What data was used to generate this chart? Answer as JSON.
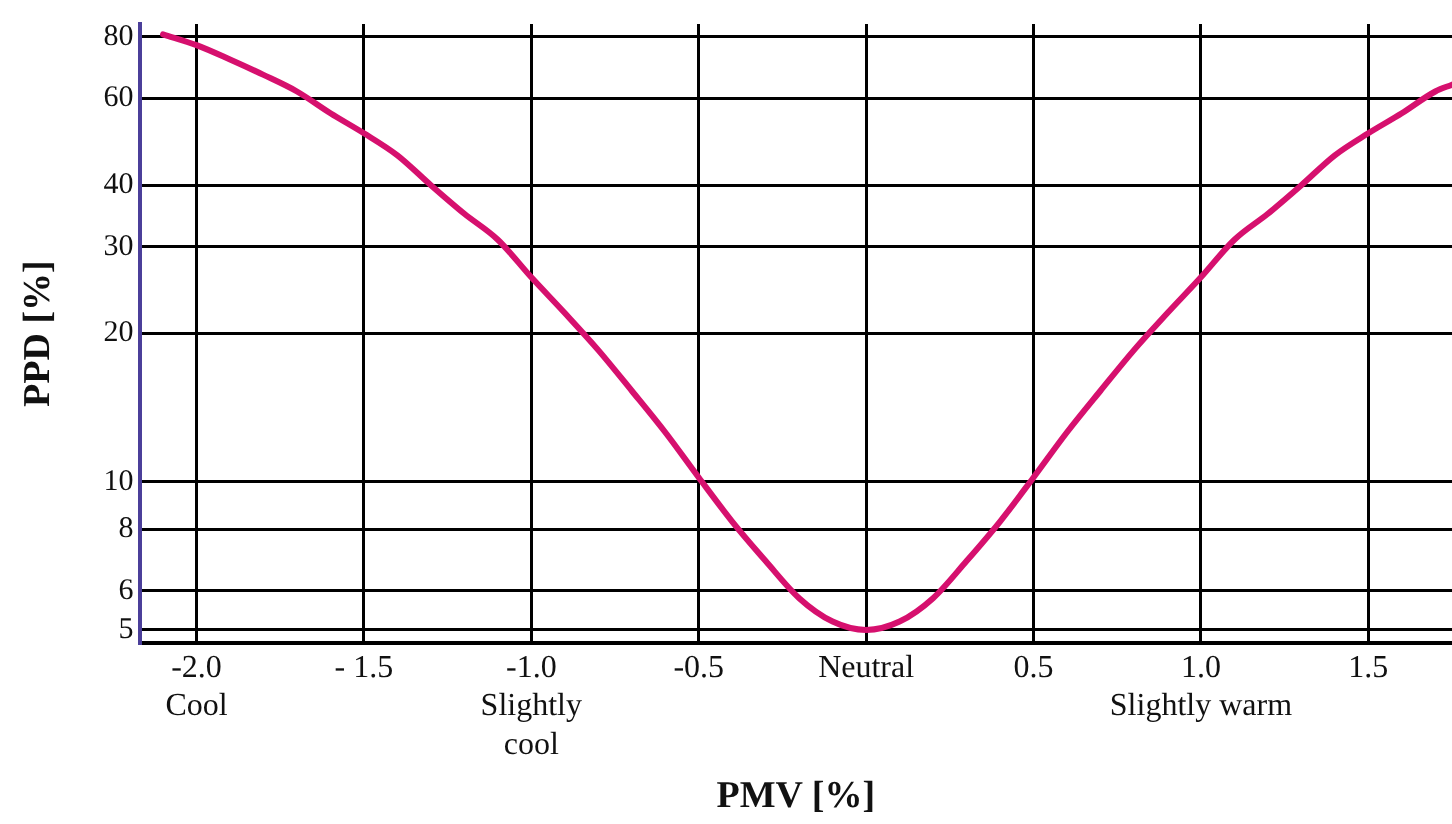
{
  "chart_data": {
    "type": "line",
    "xlabel": "PMV [%]",
    "ylabel": "PPD [%]",
    "x": [
      -2.1,
      -2.0,
      -1.9,
      -1.8,
      -1.7,
      -1.6,
      -1.5,
      -1.4,
      -1.3,
      -1.2,
      -1.1,
      -1.0,
      -0.9,
      -0.8,
      -0.7,
      -0.6,
      -0.5,
      -0.4,
      -0.3,
      -0.2,
      -0.1,
      0,
      0.1,
      0.2,
      0.3,
      0.4,
      0.5,
      0.6,
      0.7,
      0.8,
      0.9,
      1.0,
      1.1,
      1.2,
      1.3,
      1.4,
      1.5,
      1.6,
      1.7,
      1.75
    ],
    "series": [
      {
        "color": "#d6106e",
        "values": [
          81,
          77,
          72,
          67,
          62,
          56,
          51,
          46,
          40,
          35,
          31,
          26,
          22,
          18.5,
          15.3,
          12.6,
          10.2,
          8.3,
          6.9,
          5.8,
          5.2,
          5,
          5.2,
          5.8,
          6.9,
          8.3,
          10.2,
          12.6,
          15.3,
          18.5,
          22,
          26,
          31,
          35,
          40,
          46,
          51,
          56,
          62,
          64
        ]
      }
    ],
    "xlim": [
      -2.17,
      1.75
    ],
    "xticks": [
      {
        "value": -2,
        "label": "-2.0\nCool"
      },
      {
        "value": -1.5,
        "label": "- 1.5"
      },
      {
        "value": -1,
        "label": "-1.0\nSlightly\ncool"
      },
      -0.5,
      {
        "value": 0,
        "label": "Neutral"
      },
      0.5,
      {
        "value": 1,
        "label": "1.0\nSlightly warm"
      },
      1.5
    ],
    "ylim": [
      4.7,
      85
    ],
    "yticks": [
      5,
      6,
      8,
      10,
      20,
      30,
      40,
      60,
      80
    ],
    "log": true,
    "grid": true,
    "marker": "none",
    "line_style": "solid",
    "legend": false
  }
}
